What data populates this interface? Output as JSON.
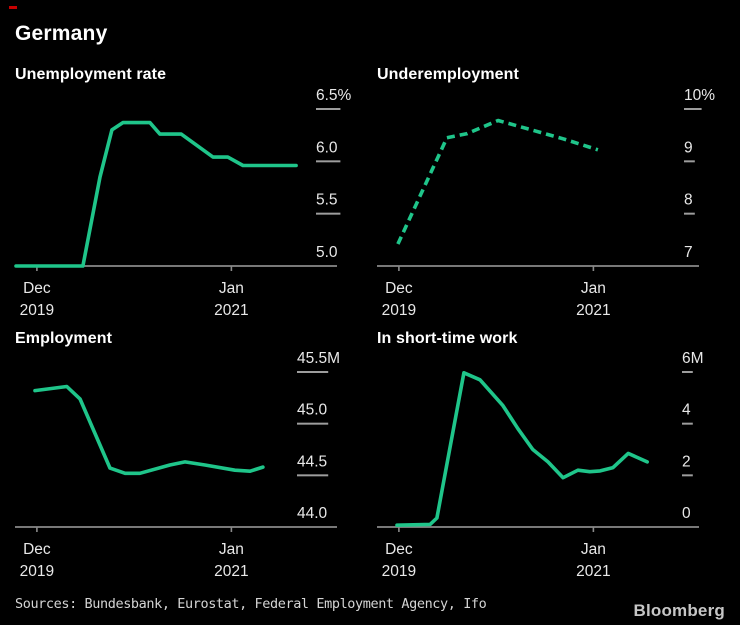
{
  "header": {
    "title": "Germany"
  },
  "footer": {
    "sources": "Sources: Bundesbank, Eurostat, Federal Employment Agency, Ifo",
    "logo": "Bloomberg"
  },
  "colors": {
    "background": "#000000",
    "line_green": "#1fc58a",
    "title_text": "#ffffff",
    "axis_label": "#e8e8e8",
    "axis_line": "#8a8a8a",
    "tick_dash": "#9d9d9d",
    "sources_text": "#d4d4d4",
    "logo_text": "#c6c6c6",
    "red_mark": "#c70000"
  },
  "chart_data": [
    {
      "id": "unemployment-rate",
      "type": "line",
      "title": "Unemployment rate",
      "line_style": "solid",
      "unit": "%",
      "ylim": [
        5.0,
        6.5
      ],
      "y_ticks": [
        {
          "label": "6.5%",
          "value": 6.5
        },
        {
          "label": "6.0",
          "value": 6.0
        },
        {
          "label": "5.5",
          "value": 5.5
        },
        {
          "label": "5.0",
          "value": 5.0
        }
      ],
      "x_ticks": [
        {
          "line1": "Dec",
          "line2": "2019",
          "frac": 0.068
        },
        {
          "line1": "Jan",
          "line2": "2021",
          "frac": 0.672
        }
      ],
      "points": [
        [
          0.003,
          5.0
        ],
        [
          0.211,
          5.0
        ],
        [
          0.264,
          5.85
        ],
        [
          0.301,
          6.3
        ],
        [
          0.335,
          6.37
        ],
        [
          0.419,
          6.37
        ],
        [
          0.45,
          6.26
        ],
        [
          0.516,
          6.26
        ],
        [
          0.615,
          6.04
        ],
        [
          0.661,
          6.04
        ],
        [
          0.708,
          5.96
        ],
        [
          0.873,
          5.96
        ]
      ]
    },
    {
      "id": "underemployment",
      "type": "line",
      "title": "Underemployment",
      "line_style": "dashed",
      "unit": "%",
      "ylim": [
        7,
        10
      ],
      "y_ticks": [
        {
          "label": "10%",
          "value": 10
        },
        {
          "label": "9",
          "value": 9
        },
        {
          "label": "8",
          "value": 8
        },
        {
          "label": "7",
          "value": 7
        }
      ],
      "x_ticks": [
        {
          "line1": "Dec",
          "line2": "2019",
          "frac": 0.068
        },
        {
          "line1": "Jan",
          "line2": "2021",
          "frac": 0.672
        }
      ],
      "points": [
        [
          0.065,
          7.42
        ],
        [
          0.217,
          9.45
        ],
        [
          0.28,
          9.53
        ],
        [
          0.376,
          9.78
        ],
        [
          0.469,
          9.62
        ],
        [
          0.578,
          9.43
        ],
        [
          0.686,
          9.22
        ]
      ]
    },
    {
      "id": "employment",
      "type": "line",
      "title": "Employment",
      "line_style": "solid",
      "unit": "M",
      "ylim": [
        44.0,
        45.5
      ],
      "y_ticks": [
        {
          "label": "45.5M",
          "value": 45.5
        },
        {
          "label": "45.0",
          "value": 45.0
        },
        {
          "label": "44.5",
          "value": 44.5
        },
        {
          "label": "44.0",
          "value": 44.0
        }
      ],
      "x_ticks": [
        {
          "line1": "Dec",
          "line2": "2019",
          "frac": 0.068
        },
        {
          "line1": "Jan",
          "line2": "2021",
          "frac": 0.672
        }
      ],
      "points": [
        [
          0.062,
          45.32
        ],
        [
          0.161,
          45.36
        ],
        [
          0.202,
          45.24
        ],
        [
          0.295,
          44.57
        ],
        [
          0.342,
          44.52
        ],
        [
          0.388,
          44.52
        ],
        [
          0.481,
          44.6
        ],
        [
          0.528,
          44.63
        ],
        [
          0.59,
          44.6
        ],
        [
          0.683,
          44.55
        ],
        [
          0.73,
          44.54
        ],
        [
          0.77,
          44.58
        ]
      ]
    },
    {
      "id": "short-time-work",
      "type": "line",
      "title": "In short-time work",
      "line_style": "solid",
      "unit": "M",
      "ylim": [
        0,
        6
      ],
      "y_ticks": [
        {
          "label": "6M",
          "value": 6
        },
        {
          "label": "4",
          "value": 4
        },
        {
          "label": "2",
          "value": 2
        },
        {
          "label": "0",
          "value": 0
        }
      ],
      "x_ticks": [
        {
          "line1": "Dec",
          "line2": "2019",
          "frac": 0.068
        },
        {
          "line1": "Jan",
          "line2": "2021",
          "frac": 0.672
        }
      ],
      "points": [
        [
          0.062,
          0.07
        ],
        [
          0.165,
          0.1
        ],
        [
          0.186,
          0.35
        ],
        [
          0.27,
          5.97
        ],
        [
          0.32,
          5.7
        ],
        [
          0.391,
          4.7
        ],
        [
          0.438,
          3.8
        ],
        [
          0.484,
          3.0
        ],
        [
          0.531,
          2.52
        ],
        [
          0.578,
          1.91
        ],
        [
          0.624,
          2.2
        ],
        [
          0.661,
          2.14
        ],
        [
          0.693,
          2.17
        ],
        [
          0.733,
          2.3
        ],
        [
          0.78,
          2.85
        ],
        [
          0.839,
          2.52
        ]
      ]
    }
  ]
}
